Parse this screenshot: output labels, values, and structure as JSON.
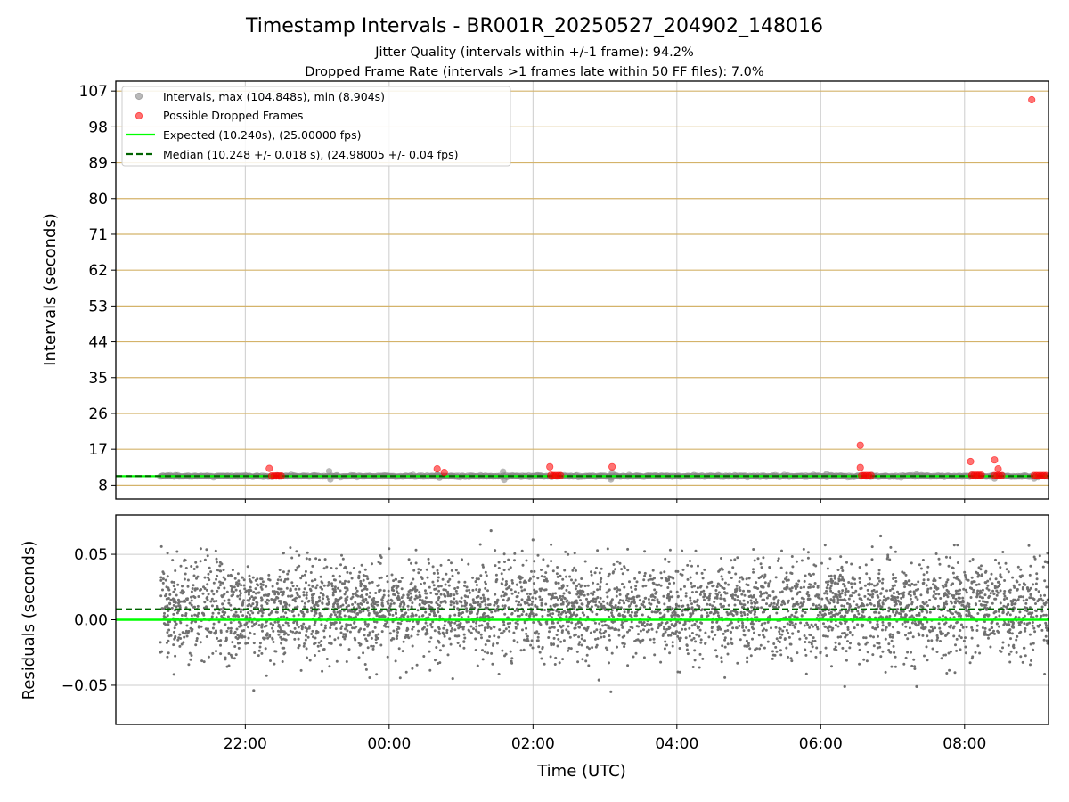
{
  "figure": {
    "title": "Timestamp Intervals - BR001R_20250527_204902_148016",
    "subtitle_1": "Jitter Quality (intervals within +/-1 frame): 94.2%",
    "subtitle_2": "Dropped Frame Rate (intervals >1 frames late within 50 FF files): 7.0%"
  },
  "colors": {
    "interval_points": "#808080",
    "dropped_points": "#ff0000",
    "expected_line": "#00ff00",
    "median_line": "#006400",
    "hgrid_top": "#d4b36a",
    "grid": "#cccccc",
    "residual_points": "#707070"
  },
  "chart_data": [
    {
      "type": "scatter",
      "title": "",
      "xlabel": "",
      "ylabel": "Intervals (seconds)",
      "xlim": [
        "2025-05-27 20:12",
        "2025-05-28 09:10"
      ],
      "ylim": [
        4.5,
        109.5
      ],
      "y_ticks": [
        "8",
        "17",
        "26",
        "35",
        "44",
        "53",
        "62",
        "71",
        "80",
        "89",
        "98",
        "107"
      ],
      "x_ticks": [
        "22:00",
        "00:00",
        "02:00",
        "04:00",
        "06:00",
        "08:00"
      ],
      "grid": true,
      "legend_position": "upper-left",
      "legend": [
        "Intervals, max (104.848s), min (8.904s)",
        "Possible Dropped Frames",
        "Expected (10.240s), (25.00000 fps)",
        "Median (10.248 +/- 0.018 s), (24.98005 +/- 0.04 fps)"
      ],
      "expected_interval": 10.24,
      "median_interval": 10.248,
      "interval_band": {
        "x_start": "2025-05-27 20:49",
        "x_end": "2025-05-28 09:10",
        "typical": 10.25
      },
      "interval_outliers": [
        {
          "x": "2025-05-27 23:10",
          "y": 11.5
        },
        {
          "x": "2025-05-27 23:11",
          "y": 9.4
        },
        {
          "x": "2025-05-28 00:40",
          "y": 10.6
        },
        {
          "x": "2025-05-28 00:42",
          "y": 9.8
        },
        {
          "x": "2025-05-28 01:35",
          "y": 11.4
        },
        {
          "x": "2025-05-28 01:36",
          "y": 9.3
        },
        {
          "x": "2025-05-28 03:05",
          "y": 9.4
        },
        {
          "x": "2025-05-28 03:06",
          "y": 11.2
        },
        {
          "x": "2025-05-28 06:05",
          "y": 10.8
        },
        {
          "x": "2025-05-28 07:20",
          "y": 10.7
        },
        {
          "x": "2025-05-28 08:25",
          "y": 9.6
        },
        {
          "x": "2025-05-28 08:58",
          "y": 9.6
        }
      ],
      "dropped_frames": [
        {
          "x": "2025-05-27 22:20",
          "y": 12.2
        },
        {
          "x": "2025-05-27 22:22",
          "y": 10.3
        },
        {
          "x": "2025-05-27 22:24",
          "y": 10.3
        },
        {
          "x": "2025-05-27 22:26",
          "y": 10.3
        },
        {
          "x": "2025-05-27 22:28",
          "y": 10.3
        },
        {
          "x": "2025-05-27 22:30",
          "y": 10.3
        },
        {
          "x": "2025-05-28 00:40",
          "y": 12.1
        },
        {
          "x": "2025-05-28 00:46",
          "y": 11.2
        },
        {
          "x": "2025-05-28 02:14",
          "y": 12.6
        },
        {
          "x": "2025-05-28 02:15",
          "y": 10.5
        },
        {
          "x": "2025-05-28 02:17",
          "y": 10.4
        },
        {
          "x": "2025-05-28 02:19",
          "y": 10.4
        },
        {
          "x": "2025-05-28 02:21",
          "y": 10.4
        },
        {
          "x": "2025-05-28 02:23",
          "y": 10.4
        },
        {
          "x": "2025-05-28 03:06",
          "y": 12.6
        },
        {
          "x": "2025-05-28 06:33",
          "y": 18.0
        },
        {
          "x": "2025-05-28 06:33",
          "y": 12.4
        },
        {
          "x": "2025-05-28 06:34",
          "y": 10.4
        },
        {
          "x": "2025-05-28 06:36",
          "y": 10.4
        },
        {
          "x": "2025-05-28 06:38",
          "y": 10.4
        },
        {
          "x": "2025-05-28 06:40",
          "y": 10.4
        },
        {
          "x": "2025-05-28 06:42",
          "y": 10.4
        },
        {
          "x": "2025-05-28 08:05",
          "y": 13.9
        },
        {
          "x": "2025-05-28 08:06",
          "y": 10.5
        },
        {
          "x": "2025-05-28 08:08",
          "y": 10.5
        },
        {
          "x": "2025-05-28 08:10",
          "y": 10.5
        },
        {
          "x": "2025-05-28 08:12",
          "y": 10.5
        },
        {
          "x": "2025-05-28 08:14",
          "y": 10.5
        },
        {
          "x": "2025-05-28 08:25",
          "y": 14.3
        },
        {
          "x": "2025-05-28 08:28",
          "y": 12.1
        },
        {
          "x": "2025-05-28 08:25",
          "y": 10.4
        },
        {
          "x": "2025-05-28 08:27",
          "y": 10.4
        },
        {
          "x": "2025-05-28 08:29",
          "y": 10.4
        },
        {
          "x": "2025-05-28 08:31",
          "y": 10.4
        },
        {
          "x": "2025-05-28 08:56",
          "y": 104.8
        },
        {
          "x": "2025-05-28 08:58",
          "y": 10.4
        },
        {
          "x": "2025-05-28 09:00",
          "y": 10.4
        },
        {
          "x": "2025-05-28 09:02",
          "y": 10.4
        },
        {
          "x": "2025-05-28 09:04",
          "y": 10.4
        },
        {
          "x": "2025-05-28 09:06",
          "y": 10.4
        },
        {
          "x": "2025-05-28 09:08",
          "y": 10.4
        }
      ]
    },
    {
      "type": "scatter",
      "title": "",
      "xlabel": "Time (UTC)",
      "ylabel": "Residuals (seconds)",
      "xlim": [
        "2025-05-27 20:12",
        "2025-05-28 09:10"
      ],
      "ylim": [
        -0.08,
        0.08
      ],
      "y_ticks": [
        0.05,
        0.0,
        -0.05
      ],
      "y_tick_labels": [
        "0.05",
        "0.00",
        "−0.05"
      ],
      "x_ticks": [
        "22:00",
        "00:00",
        "02:00",
        "04:00",
        "06:00",
        "08:00"
      ],
      "grid": true,
      "expected_residual": 0.0,
      "median_residual": 0.008,
      "residual_spread": {
        "center": 0.008,
        "sd": 0.018,
        "min": -0.055,
        "max": 0.068,
        "count": 4400
      },
      "residual_extremes": [
        {
          "x": "2025-05-27 22:07",
          "y": -0.054
        },
        {
          "x": "2025-05-28 01:25",
          "y": 0.068
        },
        {
          "x": "2025-05-28 02:00",
          "y": 0.061
        },
        {
          "x": "2025-05-28 03:05",
          "y": -0.055
        },
        {
          "x": "2025-05-28 06:20",
          "y": -0.051
        },
        {
          "x": "2025-05-28 06:50",
          "y": 0.064
        },
        {
          "x": "2025-05-28 07:20",
          "y": -0.051
        },
        {
          "x": "2025-05-28 00:53",
          "y": -0.045
        },
        {
          "x": "2025-05-28 02:55",
          "y": -0.046
        }
      ]
    }
  ]
}
